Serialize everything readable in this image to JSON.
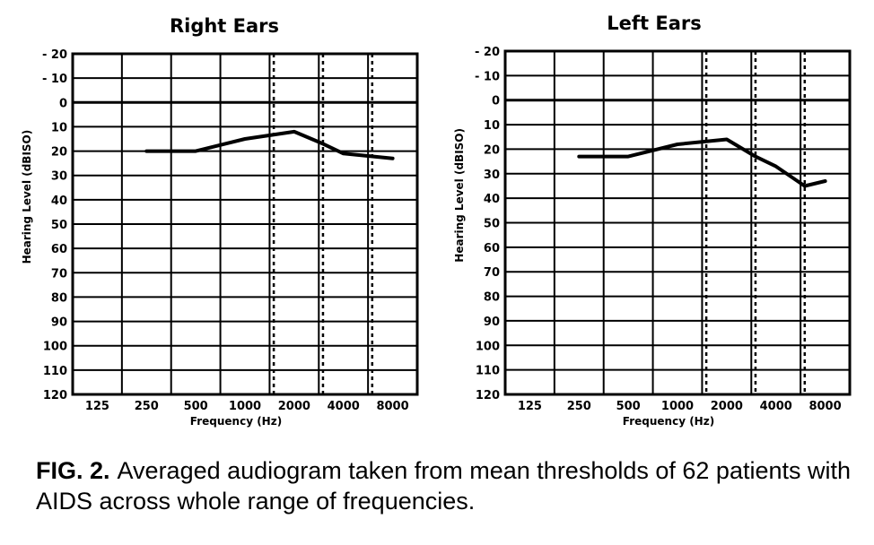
{
  "chart_data": [
    {
      "type": "line",
      "title": "Right Ears",
      "xlabel": "Frequency (Hz)",
      "ylabel": "Hearing Level (dBISO)",
      "y_tick_labels": [
        "- 20",
        "- 10",
        "0",
        "10",
        "20",
        "30",
        "40",
        "50",
        "60",
        "70",
        "80",
        "90",
        "100",
        "110",
        "120"
      ],
      "y_ticks": [
        -20,
        -10,
        0,
        10,
        20,
        30,
        40,
        50,
        60,
        70,
        80,
        90,
        100,
        110,
        120
      ],
      "ylim": [
        -20,
        120
      ],
      "y_inverted": true,
      "x_ticks": [
        125,
        250,
        500,
        1000,
        2000,
        4000,
        8000
      ],
      "x_tick_labels": [
        "125",
        "250",
        "500",
        "1000",
        "2000",
        "4000",
        "8000"
      ],
      "x_scale": "log",
      "dashed_reference_frequencies": [
        1500,
        3000,
        6000
      ],
      "grid": true,
      "series": [
        {
          "x": [
            250,
            500,
            1000,
            2000,
            3000,
            4000,
            8000
          ],
          "y": [
            20,
            20,
            15,
            12,
            17,
            21,
            23
          ]
        }
      ]
    },
    {
      "type": "line",
      "title": "Left Ears",
      "xlabel": "Frequency (Hz)",
      "ylabel": "Hearing Level (dBISO)",
      "y_tick_labels": [
        "- 20",
        "- 10",
        "0",
        "10",
        "20",
        "30",
        "40",
        "50",
        "60",
        "70",
        "80",
        "90",
        "100",
        "110",
        "120"
      ],
      "y_ticks": [
        -20,
        -10,
        0,
        10,
        20,
        30,
        40,
        50,
        60,
        70,
        80,
        90,
        100,
        110,
        120
      ],
      "ylim": [
        -20,
        120
      ],
      "y_inverted": true,
      "x_ticks": [
        125,
        250,
        500,
        1000,
        2000,
        4000,
        8000
      ],
      "x_tick_labels": [
        "125",
        "250",
        "500",
        "1000",
        "2000",
        "4000",
        "8000"
      ],
      "x_scale": "log",
      "dashed_reference_frequencies": [
        1500,
        3000,
        6000
      ],
      "grid": true,
      "series": [
        {
          "x": [
            250,
            500,
            1000,
            2000,
            3000,
            4000,
            6000,
            8000
          ],
          "y": [
            23,
            23,
            18,
            16,
            23,
            27,
            35,
            33
          ]
        }
      ]
    }
  ],
  "caption": {
    "label": "FIG. 2.",
    "text": "Averaged audiogram taken from mean thresholds of 62 patients with AIDS across whole range of frequencies."
  },
  "colors": {
    "line": "#000000",
    "grid": "#000000",
    "background": "#ffffff"
  }
}
